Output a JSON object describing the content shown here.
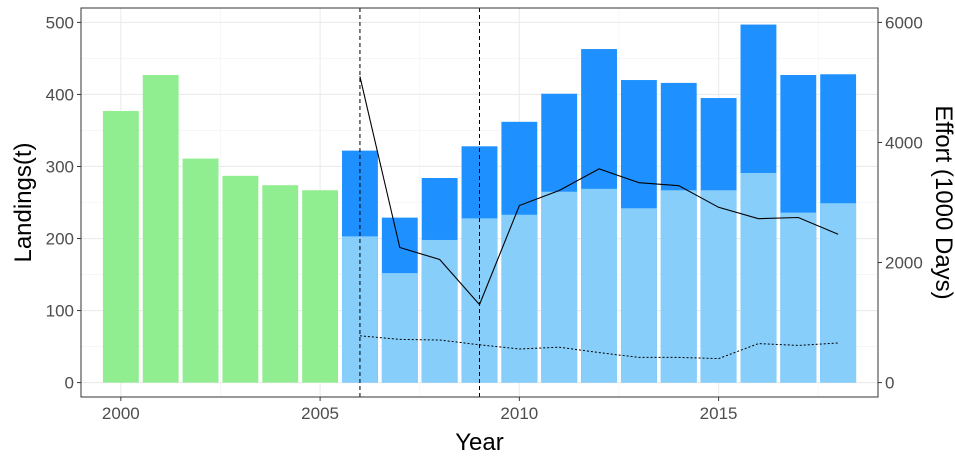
{
  "chart_data": {
    "type": "bar",
    "xlabel": "Year",
    "ylabel": "Landings(t)",
    "y2label": "Effort (1000 Days)",
    "xlim": [
      1999,
      2019
    ],
    "ylim": [
      -20,
      520
    ],
    "y2lim": [
      -240,
      6240
    ],
    "x_ticks": [
      2000,
      2005,
      2010,
      2015
    ],
    "y_ticks": [
      0,
      100,
      200,
      300,
      400,
      500
    ],
    "y2_ticks": [
      0,
      2000,
      4000,
      6000
    ],
    "grid": true,
    "vlines": [
      2006,
      2009
    ],
    "colors": {
      "early": "#90ee90",
      "total": "#1e90ff",
      "part": "#87cefa",
      "line": "#000000"
    },
    "early_bars": {
      "years": [
        2000,
        2001,
        2002,
        2003,
        2004,
        2005
      ],
      "values": [
        377,
        427,
        311,
        287,
        274,
        267
      ]
    },
    "stacked_bars": {
      "years": [
        2006,
        2007,
        2008,
        2009,
        2010,
        2011,
        2012,
        2013,
        2014,
        2015,
        2016,
        2017,
        2018
      ],
      "total": [
        322,
        229,
        284,
        328,
        362,
        401,
        463,
        420,
        416,
        395,
        497,
        427,
        428
      ],
      "part": [
        203,
        152,
        198,
        228,
        233,
        265,
        269,
        242,
        267,
        267,
        291,
        236,
        249
      ]
    },
    "effort_solid": {
      "x": [
        2006,
        2007,
        2008,
        2009,
        2010,
        2011,
        2012,
        2013,
        2014,
        2015,
        2016,
        2017,
        2018
      ],
      "y": [
        5100,
        2250,
        2050,
        1300,
        2950,
        3200,
        3560,
        3330,
        3280,
        2920,
        2730,
        2750,
        2470
      ]
    },
    "effort_dashed": {
      "x": [
        2006,
        2007,
        2008,
        2009,
        2010,
        2011,
        2012,
        2013,
        2014,
        2015,
        2016,
        2017,
        2018
      ],
      "y": [
        780,
        720,
        710,
        630,
        560,
        590,
        500,
        420,
        420,
        400,
        650,
        620,
        660
      ]
    }
  }
}
